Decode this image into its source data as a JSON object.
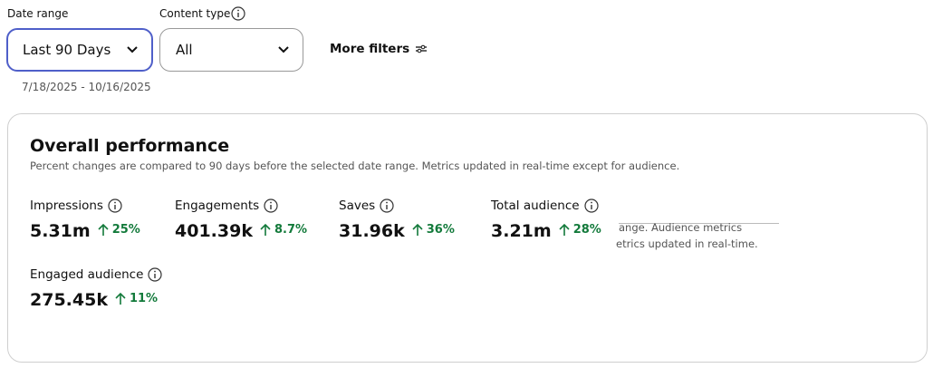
{
  "filters": {
    "date_range": {
      "label": "Date range",
      "value": "Last 90 Days",
      "dates": "7/18/2025 - 10/16/2025"
    },
    "content_type": {
      "label": "Content type",
      "value": "All"
    },
    "more_filters": "More filters"
  },
  "panel": {
    "title": "Overall performance",
    "subtitle": "Percent changes are compared to 90 days before the selected date range. Metrics updated in real-time except for audience.",
    "metrics": [
      {
        "name": "Impressions",
        "value": "5.31m",
        "change": "25%"
      },
      {
        "name": "Engagements",
        "value": "401.39k",
        "change": "8.7%"
      },
      {
        "name": "Saves",
        "value": "31.96k",
        "change": "36%"
      },
      {
        "name": "Total audience",
        "value": "3.21m",
        "change": "28%"
      },
      {
        "name": "Engaged audience",
        "value": "275.45k",
        "change": "11%"
      }
    ],
    "tooltip_fragment": [
      "ange. Audience metrics",
      "etrics updated in real-time."
    ]
  }
}
